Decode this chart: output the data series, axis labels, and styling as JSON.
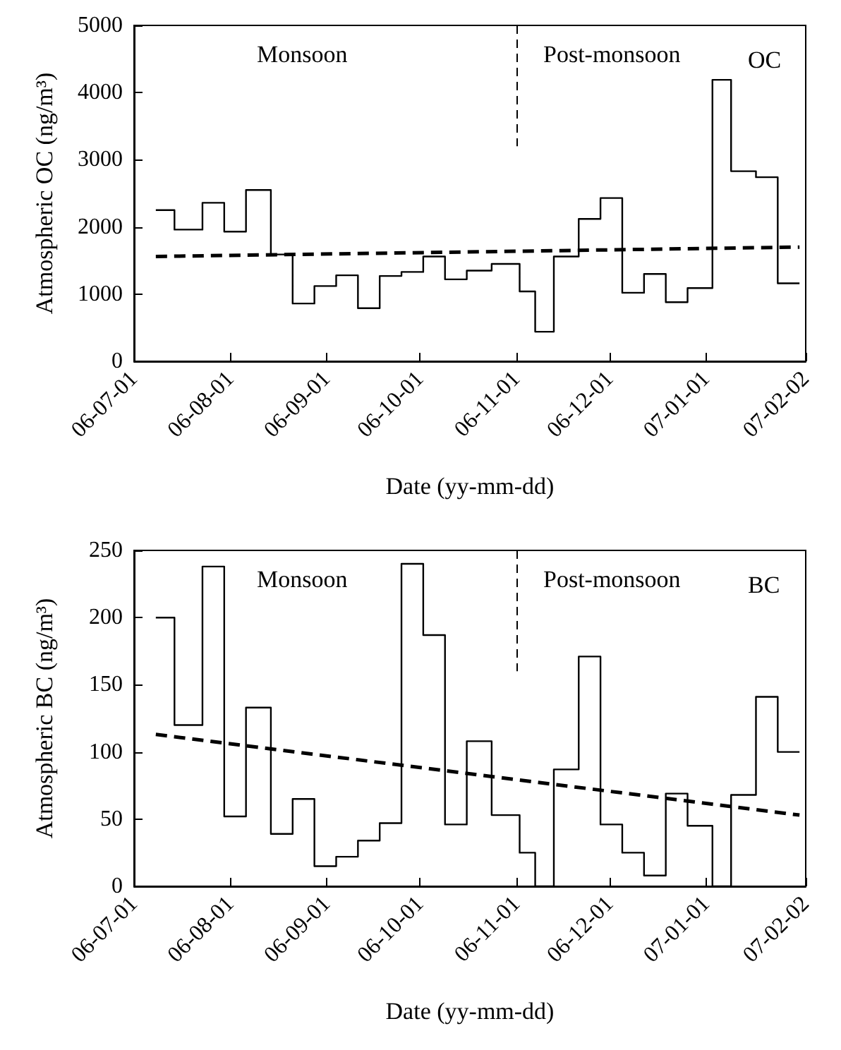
{
  "chart_data": [
    {
      "type": "step",
      "xlabel": "Date (yy-mm-dd)",
      "ylabel": "Atmospheric OC (ng/m³)",
      "annotations": [
        "Monsoon",
        "Post-monsoon",
        "OC"
      ],
      "xlim": [
        "2006-07-01",
        "2007-02-02"
      ],
      "xticks": [
        {
          "value": "2006-07-01",
          "label": "06-07-01"
        },
        {
          "value": "2006-08-01",
          "label": "06-08-01"
        },
        {
          "value": "2006-09-01",
          "label": "06-09-01"
        },
        {
          "value": "2006-10-01",
          "label": "06-10-01"
        },
        {
          "value": "2006-11-01",
          "label": "06-11-01"
        },
        {
          "value": "2006-12-01",
          "label": "06-12-01"
        },
        {
          "value": "2007-01-01",
          "label": "07-01-01"
        },
        {
          "value": "2007-02-02",
          "label": "07-02-02"
        }
      ],
      "ylim": [
        0,
        5000
      ],
      "yticks": [
        0,
        1000,
        2000,
        3000,
        4000,
        5000
      ],
      "grid": false,
      "marker": "none",
      "x": [
        "2006-07-08",
        "2006-07-14",
        "2006-07-23",
        "2006-07-30",
        "2006-08-06",
        "2006-08-14",
        "2006-08-21",
        "2006-08-28",
        "2006-09-04",
        "2006-09-11",
        "2006-09-18",
        "2006-09-25",
        "2006-10-02",
        "2006-10-09",
        "2006-10-16",
        "2006-10-24",
        "2006-11-02",
        "2006-11-07",
        "2006-11-13",
        "2006-11-21",
        "2006-11-28",
        "2006-12-05",
        "2006-12-12",
        "2006-12-19",
        "2006-12-26",
        "2007-01-03",
        "2007-01-09",
        "2007-01-17",
        "2007-01-24",
        "2007-01-31"
      ],
      "series": [
        {
          "color": "#000000",
          "line_style": "solid",
          "values": [
            2250,
            1960,
            2360,
            1930,
            2550,
            1590,
            860,
            1120,
            1280,
            790,
            1270,
            1330,
            1560,
            1220,
            1350,
            1450,
            1040,
            440,
            1560,
            2120,
            2430,
            1020,
            1300,
            880,
            1090,
            4190,
            2830,
            2740,
            1160,
            1160
          ]
        },
        {
          "type": "line",
          "color": "#000000",
          "line_style": "dashed",
          "x": [
            "2006-07-08",
            "2007-01-31"
          ],
          "values": [
            1560,
            1700
          ]
        }
      ],
      "ref_lines": [
        {
          "axis": "x",
          "value": "2006-11-01",
          "color": "#000000",
          "line_style": "dashed"
        }
      ]
    },
    {
      "type": "step",
      "xlabel": "Date (yy-mm-dd)",
      "ylabel": "Atmospheric BC (ng/m³)",
      "annotations": [
        "Monsoon",
        "Post-monsoon",
        "BC"
      ],
      "xlim": [
        "2006-07-01",
        "2007-02-02"
      ],
      "xticks": [
        {
          "value": "2006-07-01",
          "label": "06-07-01"
        },
        {
          "value": "2006-08-01",
          "label": "06-08-01"
        },
        {
          "value": "2006-09-01",
          "label": "06-09-01"
        },
        {
          "value": "2006-10-01",
          "label": "06-10-01"
        },
        {
          "value": "2006-11-01",
          "label": "06-11-01"
        },
        {
          "value": "2006-12-01",
          "label": "06-12-01"
        },
        {
          "value": "2007-01-01",
          "label": "07-01-01"
        },
        {
          "value": "2007-02-02",
          "label": "07-02-02"
        }
      ],
      "ylim": [
        0,
        250
      ],
      "yticks": [
        0,
        50,
        100,
        150,
        200,
        250
      ],
      "grid": false,
      "marker": "none",
      "x": [
        "2006-07-08",
        "2006-07-14",
        "2006-07-23",
        "2006-07-30",
        "2006-08-06",
        "2006-08-14",
        "2006-08-21",
        "2006-08-28",
        "2006-09-04",
        "2006-09-11",
        "2006-09-18",
        "2006-09-25",
        "2006-10-02",
        "2006-10-09",
        "2006-10-16",
        "2006-10-24",
        "2006-11-02",
        "2006-11-07",
        "2006-11-13",
        "2006-11-21",
        "2006-11-28",
        "2006-12-05",
        "2006-12-12",
        "2006-12-19",
        "2006-12-26",
        "2007-01-03",
        "2007-01-09",
        "2007-01-17",
        "2007-01-24",
        "2007-01-31"
      ],
      "series": [
        {
          "color": "#000000",
          "line_style": "solid",
          "values": [
            200,
            120,
            238,
            52,
            133,
            39,
            65,
            15,
            22,
            34,
            47,
            240,
            187,
            46,
            108,
            53,
            25,
            0,
            87,
            171,
            46,
            25,
            8,
            69,
            45,
            0,
            68,
            141,
            100,
            100
          ]
        },
        {
          "type": "line",
          "color": "#000000",
          "line_style": "dashed",
          "x": [
            "2006-07-08",
            "2007-01-31"
          ],
          "values": [
            113,
            53
          ]
        }
      ],
      "ref_lines": [
        {
          "axis": "x",
          "value": "2006-11-01",
          "color": "#000000",
          "line_style": "dashed"
        }
      ]
    }
  ]
}
